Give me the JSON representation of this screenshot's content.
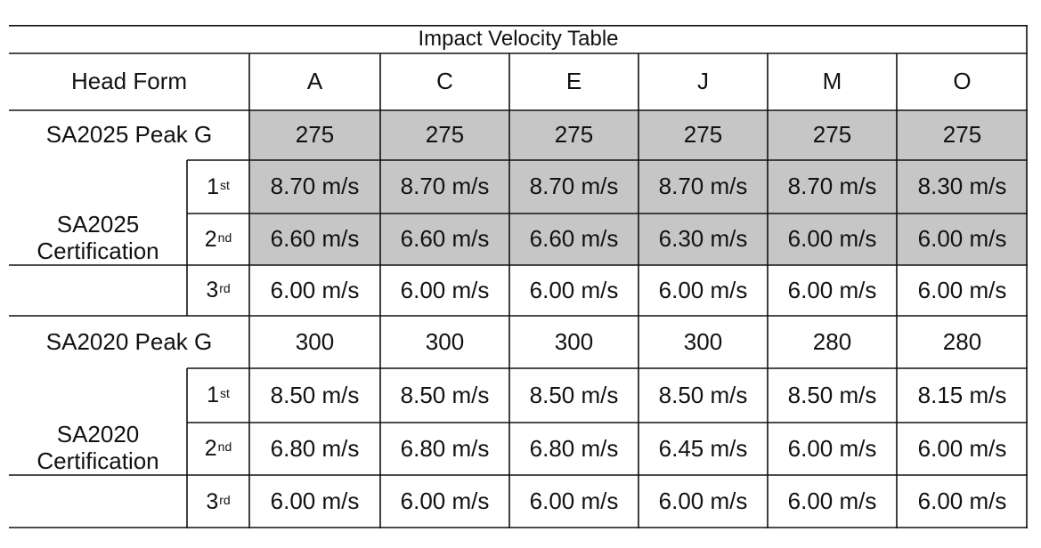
{
  "title": "Impact Velocity Table",
  "shade_color": "#c6c6c6",
  "header": {
    "label": "Head Form",
    "forms": [
      "A",
      "C",
      "E",
      "J",
      "M",
      "O"
    ]
  },
  "sections": [
    {
      "peak_label": "SA2025 Peak G",
      "peak_values": [
        "275",
        "275",
        "275",
        "275",
        "275",
        "275"
      ],
      "peak_shaded": true,
      "cert_label_line1": "SA2025",
      "cert_label_line2": "Certification",
      "impacts": [
        {
          "num": "1",
          "suffix": "st",
          "values": [
            "8.70 m/s",
            "8.70 m/s",
            "8.70 m/s",
            "8.70 m/s",
            "8.70 m/s",
            "8.30 m/s"
          ],
          "shaded": [
            true,
            true,
            true,
            true,
            true,
            true
          ]
        },
        {
          "num": "2",
          "suffix": "nd",
          "values": [
            "6.60 m/s",
            "6.60 m/s",
            "6.60 m/s",
            "6.30 m/s",
            "6.00 m/s",
            "6.00 m/s"
          ],
          "shaded": [
            true,
            true,
            true,
            true,
            true,
            true
          ]
        },
        {
          "num": "3",
          "suffix": "rd",
          "values": [
            "6.00 m/s",
            "6.00 m/s",
            "6.00 m/s",
            "6.00 m/s",
            "6.00 m/s",
            "6.00 m/s"
          ],
          "shaded": [
            false,
            false,
            false,
            false,
            false,
            false
          ]
        }
      ]
    },
    {
      "peak_label": "SA2020 Peak G",
      "peak_values": [
        "300",
        "300",
        "300",
        "300",
        "280",
        "280"
      ],
      "peak_shaded": false,
      "cert_label_line1": "SA2020",
      "cert_label_line2": "Certification",
      "impacts": [
        {
          "num": "1",
          "suffix": "st",
          "values": [
            "8.50 m/s",
            "8.50 m/s",
            "8.50 m/s",
            "8.50 m/s",
            "8.50 m/s",
            "8.15 m/s"
          ],
          "shaded": [
            false,
            false,
            false,
            false,
            false,
            false
          ]
        },
        {
          "num": "2",
          "suffix": "nd",
          "values": [
            "6.80 m/s",
            "6.80 m/s",
            "6.80 m/s",
            "6.45 m/s",
            "6.00 m/s",
            "6.00 m/s"
          ],
          "shaded": [
            false,
            false,
            false,
            false,
            false,
            false
          ]
        },
        {
          "num": "3",
          "suffix": "rd",
          "values": [
            "6.00 m/s",
            "6.00 m/s",
            "6.00 m/s",
            "6.00 m/s",
            "6.00 m/s",
            "6.00 m/s"
          ],
          "shaded": [
            false,
            false,
            false,
            false,
            false,
            false
          ]
        }
      ]
    }
  ]
}
